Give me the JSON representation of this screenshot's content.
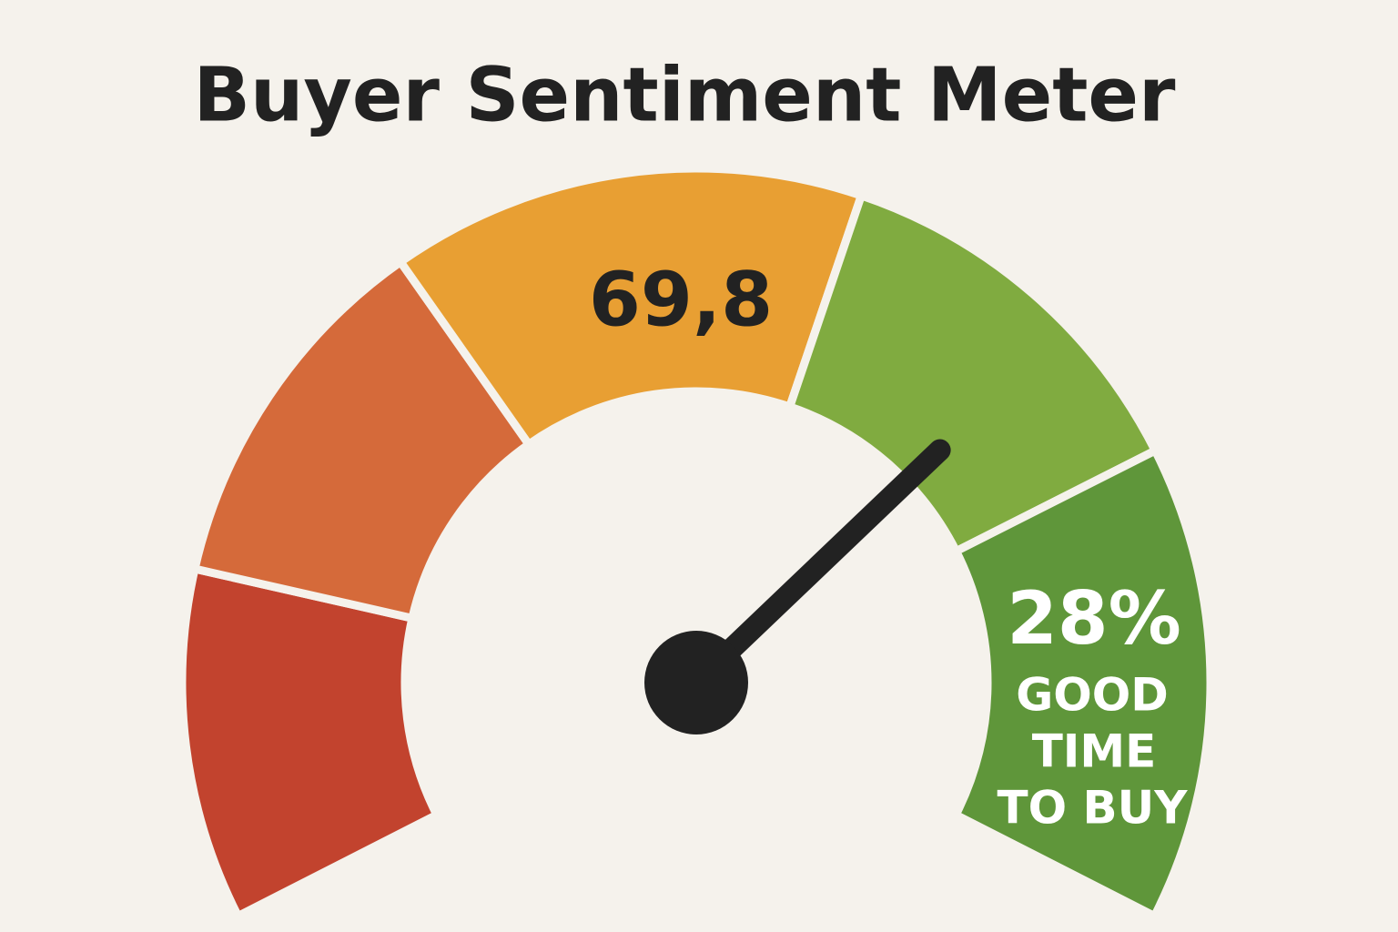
{
  "chart_data": {
    "type": "gauge",
    "title": "Buyer Sentiment Meter",
    "value": 69.8,
    "value_label": "69,8",
    "ylim": [
      0,
      100
    ],
    "segments": [
      {
        "color": "#c2432e",
        "values": 17
      },
      {
        "color": "#d56a3a",
        "values": 18
      },
      {
        "color": "#e89f33",
        "values": 23
      },
      {
        "color": "#80ab40",
        "values": 19
      },
      {
        "color": "#5f963a",
        "values": 23
      }
    ],
    "needle_color": "#222222",
    "annotation": {
      "label": "28%",
      "lines": [
        "GOOD",
        "TIME",
        "TO BUY"
      ]
    }
  }
}
